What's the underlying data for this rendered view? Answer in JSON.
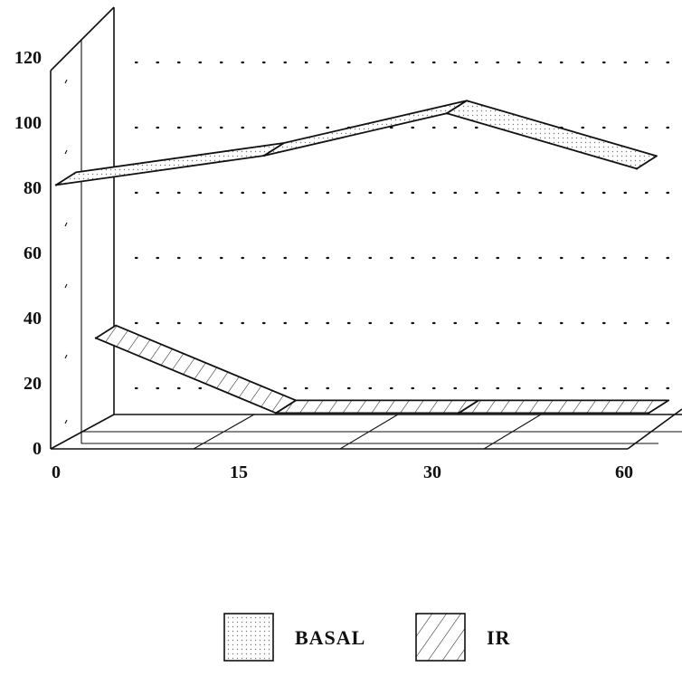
{
  "chart_data": {
    "type": "line",
    "style": "3d-ribbon",
    "categories": [
      "0",
      "15",
      "30",
      "60"
    ],
    "series": [
      {
        "name": "BASAL",
        "values": [
          81,
          90,
          103,
          86
        ],
        "pattern": "dotted"
      },
      {
        "name": "IR",
        "values": [
          34,
          11,
          11,
          11
        ],
        "pattern": "hatched"
      }
    ],
    "y_ticks": [
      "0",
      "20",
      "40",
      "60",
      "80",
      "100",
      "120"
    ],
    "ylim": [
      0,
      120
    ],
    "grid": true,
    "legend_position": "bottom-center",
    "title": "",
    "xlabel": "",
    "ylabel": ""
  }
}
